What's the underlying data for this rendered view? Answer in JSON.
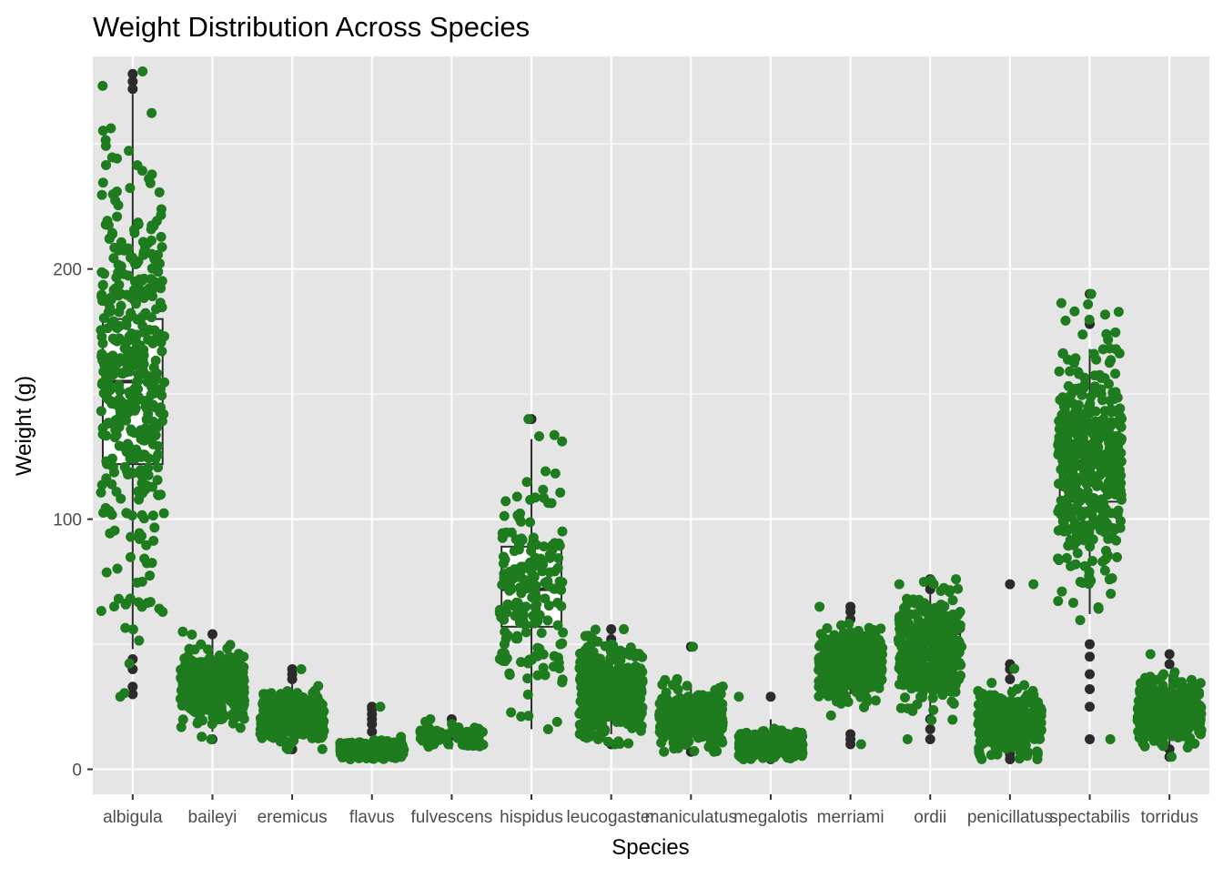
{
  "chart_data": {
    "type": "scatter",
    "subtype": "boxplot-with-jitter",
    "title": "Weight Distribution Across Species",
    "xlabel": "Species",
    "ylabel": "Weight (g)",
    "ylim": [
      -10,
      285
    ],
    "yticks": [
      0,
      100,
      200
    ],
    "grid": true,
    "legend": "none",
    "point_color": "#1e7b1e",
    "outlier_color": "#2b2b2b",
    "box_line_color": "#2b2b2b",
    "panel_background": "#e5e5e5",
    "grid_color": "#ffffff",
    "categories": [
      "albigula",
      "baileyi",
      "eremicus",
      "flavus",
      "fulvescens",
      "hispidus",
      "leucogaster",
      "maniculatus",
      "megalotis",
      "merriami",
      "ordii",
      "penicillatus",
      "spectabilis",
      "torridus"
    ],
    "boxes": [
      {
        "species": "albigula",
        "min": 48,
        "q1": 122,
        "median": 155,
        "q3": 180,
        "max": 270,
        "outliers": [
          30,
          33,
          40,
          44,
          272,
          275,
          278
        ],
        "n": 900,
        "jitter_min": 29,
        "jitter_max": 279
      },
      {
        "species": "baileyi",
        "min": 15,
        "q1": 28,
        "median": 32,
        "q3": 37,
        "max": 52,
        "outliers": [
          12,
          54
        ],
        "n": 2800,
        "jitter_min": 12,
        "jitter_max": 55
      },
      {
        "species": "eremicus",
        "min": 10,
        "q1": 18,
        "median": 21,
        "q3": 24,
        "max": 34,
        "outliers": [
          8,
          36,
          38,
          40
        ],
        "n": 1300,
        "jitter_min": 8,
        "jitter_max": 40
      },
      {
        "species": "flavus",
        "min": 4,
        "q1": 7,
        "median": 8,
        "q3": 9,
        "max": 12,
        "outliers": [
          15,
          18,
          20,
          22,
          24,
          25
        ],
        "n": 1500,
        "jitter_min": 4,
        "jitter_max": 25
      },
      {
        "species": "fulvescens",
        "min": 8,
        "q1": 12,
        "median": 13,
        "q3": 15,
        "max": 19,
        "outliers": [
          20
        ],
        "n": 70,
        "jitter_min": 9,
        "jitter_max": 20
      },
      {
        "species": "hispidus",
        "min": 16,
        "q1": 57,
        "median": 72,
        "q3": 89,
        "max": 132,
        "outliers": [
          140
        ],
        "n": 180,
        "jitter_min": 16,
        "jitter_max": 140
      },
      {
        "species": "leucogaster",
        "min": 14,
        "q1": 24,
        "median": 31,
        "q3": 36,
        "max": 48,
        "outliers": [
          10,
          52,
          56
        ],
        "n": 1000,
        "jitter_min": 10,
        "jitter_max": 56
      },
      {
        "species": "maniculatus",
        "min": 10,
        "q1": 18,
        "median": 21,
        "q3": 25,
        "max": 34,
        "outliers": [
          7,
          49
        ],
        "n": 900,
        "jitter_min": 7,
        "jitter_max": 49
      },
      {
        "species": "megalotis",
        "min": 5,
        "q1": 9,
        "median": 10,
        "q3": 12,
        "max": 20,
        "outliers": [
          4,
          29
        ],
        "n": 2300,
        "jitter_min": 4,
        "jitter_max": 29
      },
      {
        "species": "merriami",
        "min": 30,
        "q1": 37,
        "median": 42,
        "q3": 46,
        "max": 58,
        "outliers": [
          10,
          12,
          14,
          60,
          63,
          65
        ],
        "n": 3000,
        "jitter_min": 10,
        "jitter_max": 65
      },
      {
        "species": "ordii",
        "min": 22,
        "q1": 40,
        "median": 48,
        "q3": 54,
        "max": 70,
        "outliers": [
          12,
          16,
          20,
          72,
          76
        ],
        "n": 2500,
        "jitter_min": 12,
        "jitter_max": 76
      },
      {
        "species": "penicillatus",
        "min": 8,
        "q1": 15,
        "median": 18,
        "q3": 22,
        "max": 33,
        "outliers": [
          4,
          6,
          36,
          40,
          42,
          74
        ],
        "n": 1300,
        "jitter_min": 4,
        "jitter_max": 74
      },
      {
        "species": "spectabilis",
        "min": 62,
        "q1": 107,
        "median": 123,
        "q3": 138,
        "max": 168,
        "outliers": [
          12,
          25,
          32,
          38,
          45,
          50,
          178,
          190
        ],
        "n": 2400,
        "jitter_min": 12,
        "jitter_max": 190
      },
      {
        "species": "torridus",
        "min": 10,
        "q1": 19,
        "median": 23,
        "q3": 27,
        "max": 38,
        "outliers": [
          5,
          8,
          42,
          46
        ],
        "n": 1800,
        "jitter_min": 5,
        "jitter_max": 46
      }
    ]
  }
}
